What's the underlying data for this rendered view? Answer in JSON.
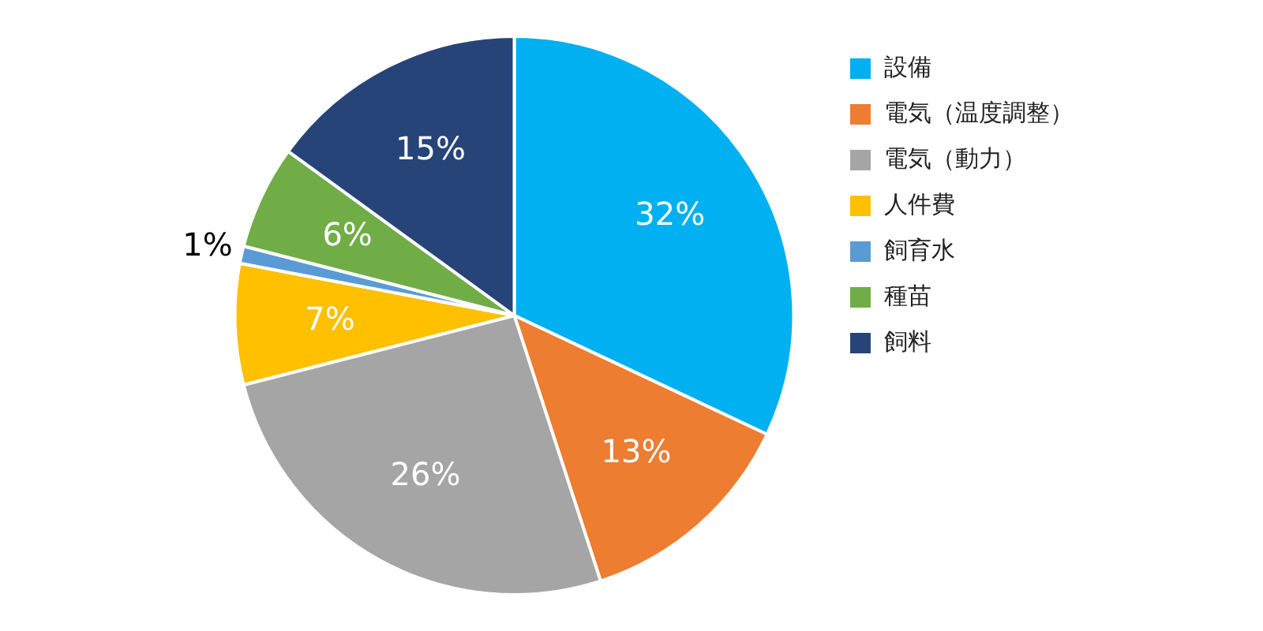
{
  "chart_data": {
    "type": "pie",
    "categories": [
      "設備",
      "電気（温度調整）",
      "電気（動力）",
      "人件費",
      "飼育水",
      "種苗",
      "飼料"
    ],
    "values": [
      32,
      13,
      26,
      7,
      1,
      6,
      15
    ],
    "colors": [
      "#00b0f0",
      "#ed7d31",
      "#a5a5a5",
      "#ffc000",
      "#5b9bd5",
      "#70ad47",
      "#264478"
    ],
    "value_labels": [
      "32%",
      "13%",
      "26%",
      "7%",
      "1%",
      "6%",
      "15%"
    ],
    "legend": "right"
  }
}
